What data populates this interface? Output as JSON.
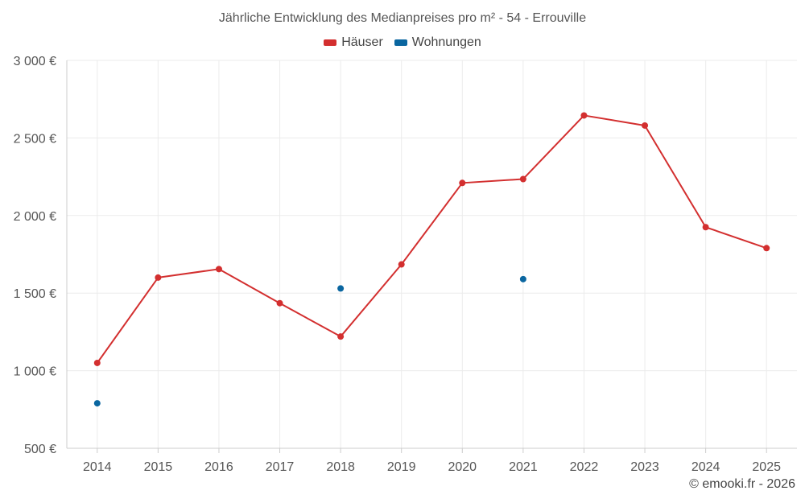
{
  "chart_data": {
    "type": "line",
    "title": "Jährliche Entwicklung des Medianpreises pro m² - 54 - Errouville",
    "xlabel": "",
    "ylabel": "",
    "categories": [
      "2014",
      "2015",
      "2016",
      "2017",
      "2018",
      "2019",
      "2020",
      "2021",
      "2022",
      "2023",
      "2024",
      "2025"
    ],
    "y_ticks": [
      500,
      1000,
      1500,
      2000,
      2500,
      3000
    ],
    "y_tick_labels": [
      "500 €",
      "1 000 €",
      "1 500 €",
      "2 000 €",
      "2 500 €",
      "3 000 €"
    ],
    "ylim": [
      500,
      3000
    ],
    "grid": true,
    "legend_position": "top-center",
    "series": [
      {
        "name": "Häuser",
        "color": "#d32f2f",
        "line": true,
        "values": [
          1050,
          1600,
          1655,
          1435,
          1220,
          1685,
          2210,
          2235,
          2645,
          2580,
          1925,
          1790
        ]
      },
      {
        "name": "Wohnungen",
        "color": "#0a66a0",
        "line": false,
        "values": [
          790,
          null,
          null,
          null,
          1530,
          null,
          null,
          1590,
          null,
          null,
          null,
          null
        ]
      }
    ]
  },
  "credit": "© emooki.fr - 2026"
}
